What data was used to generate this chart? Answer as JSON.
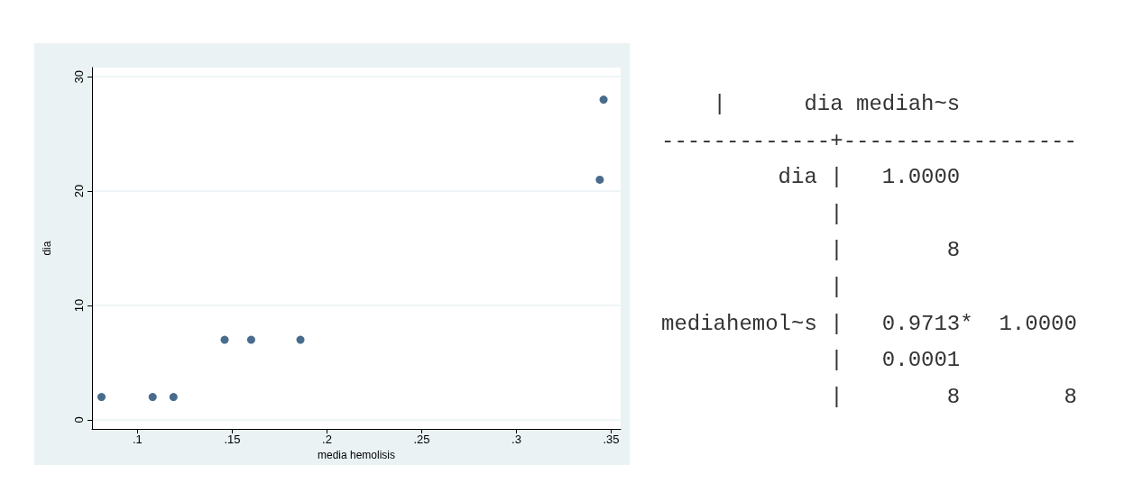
{
  "chart_data": [
    {
      "type": "scatter",
      "xlabel": "media hemolisis",
      "ylabel": "dia",
      "color": "#1a476f",
      "marker": "circle",
      "grid": "y",
      "x": [
        0.081,
        0.108,
        0.119,
        0.146,
        0.16,
        0.186,
        0.344,
        0.346
      ],
      "values": [
        2,
        2,
        2,
        7,
        7,
        7,
        21,
        28
      ],
      "xlim": [
        0.076,
        0.355
      ],
      "ylim": [
        -0.8,
        30.8
      ],
      "xticks": [
        {
          "value": 0.1,
          "label": ".1"
        },
        {
          "value": 0.15,
          "label": ".15"
        },
        {
          "value": 0.2,
          "label": ".2"
        },
        {
          "value": 0.25,
          "label": ".25"
        },
        {
          "value": 0.3,
          "label": ".3"
        },
        {
          "value": 0.35,
          "label": ".35"
        }
      ],
      "yticks": [
        0,
        10,
        20,
        30
      ]
    },
    {
      "type": "other",
      "annotations": [
        "    |      dia mediah~s",
        "-------------+------------------",
        "         dia |   1.0000",
        "             |",
        "             |        8",
        "             |",
        "mediahemol~s |   0.9713*  1.0000",
        "             |   0.0001",
        "             |        8        8"
      ]
    }
  ]
}
